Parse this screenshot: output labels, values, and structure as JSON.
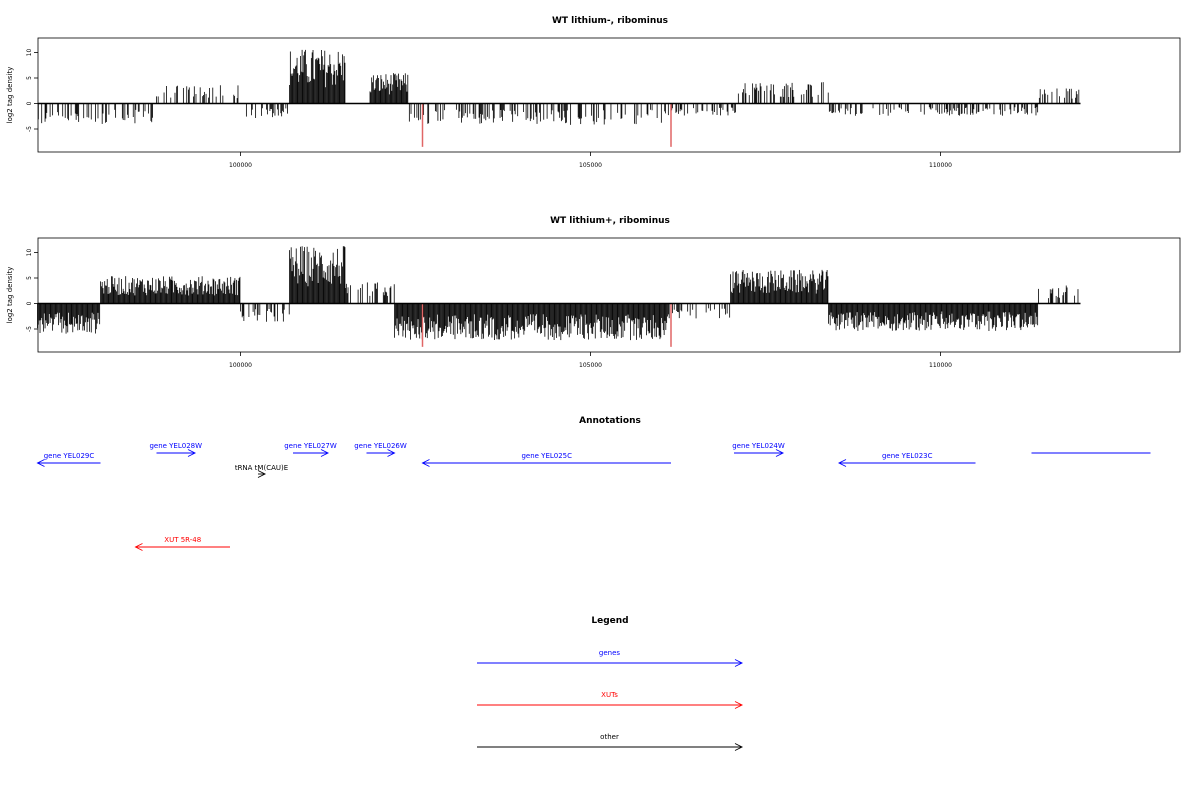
{
  "chart_data": [
    {
      "type": "bar",
      "title": "WT lithium-, ribominus",
      "ylabel": "log2 tag density",
      "xlabel": "",
      "xlim": [
        97000,
        112000
      ],
      "ylim": [
        -8.5,
        11.5
      ],
      "xticks": [
        100000,
        105000,
        110000
      ],
      "yticks": [
        -5,
        0,
        5,
        10
      ],
      "profile_segments": [
        {
          "start": 97100,
          "end": 98800,
          "level": -3.5
        },
        {
          "start": 98800,
          "end": 100000,
          "level": 3.0
        },
        {
          "start": 100000,
          "end": 100700,
          "level": -2.5
        },
        {
          "start": 100700,
          "end": 101500,
          "level": 9.0
        },
        {
          "start": 101500,
          "end": 101850,
          "level": 0
        },
        {
          "start": 101850,
          "end": 102400,
          "level": 5.0
        },
        {
          "start": 102400,
          "end": 106100,
          "level": -3.5
        },
        {
          "start": 106100,
          "end": 107100,
          "level": -2.0
        },
        {
          "start": 107100,
          "end": 108400,
          "level": 3.5
        },
        {
          "start": 108400,
          "end": 111400,
          "level": -2.0
        },
        {
          "start": 111400,
          "end": 112000,
          "level": 2.5
        }
      ],
      "highlights": [
        {
          "x": 102600,
          "y": -8.5,
          "color": "#e06666"
        },
        {
          "x": 106150,
          "y": -8.5,
          "color": "#e06666"
        }
      ]
    },
    {
      "type": "bar",
      "title": "WT lithium+, ribominus",
      "ylabel": "log2 tag density",
      "xlabel": "",
      "xlim": [
        97000,
        112000
      ],
      "ylim": [
        -8.5,
        11.5
      ],
      "xticks": [
        100000,
        105000,
        110000
      ],
      "yticks": [
        -5,
        0,
        5,
        10
      ],
      "profile_segments": [
        {
          "start": 97100,
          "end": 98000,
          "level": -5.0
        },
        {
          "start": 98000,
          "end": 100000,
          "level": 4.5
        },
        {
          "start": 100000,
          "end": 100700,
          "level": -3.0
        },
        {
          "start": 100700,
          "end": 101500,
          "level": 9.5
        },
        {
          "start": 101500,
          "end": 102200,
          "level": 3.5
        },
        {
          "start": 102200,
          "end": 106100,
          "level": -6.0
        },
        {
          "start": 106100,
          "end": 107000,
          "level": -2.5
        },
        {
          "start": 107000,
          "end": 108400,
          "level": 5.5
        },
        {
          "start": 108400,
          "end": 111400,
          "level": -4.5
        },
        {
          "start": 111400,
          "end": 112000,
          "level": 3.0
        }
      ],
      "highlights": [
        {
          "x": 102600,
          "y": -8.5,
          "color": "#e06666"
        },
        {
          "x": 106150,
          "y": -8.5,
          "color": "#e06666"
        }
      ]
    }
  ],
  "annotations": {
    "title": "Annotations",
    "items": [
      {
        "label": "gene YEL029C",
        "color": "#0000ff",
        "start": 97100,
        "end": 98000,
        "direction": "left"
      },
      {
        "label": "gene YEL028W",
        "color": "#0000ff",
        "start": 98800,
        "end": 99350,
        "direction": "right"
      },
      {
        "label": "gene YEL027W",
        "color": "#0000ff",
        "start": 100750,
        "end": 101250,
        "direction": "right"
      },
      {
        "label": "gene YEL026W",
        "color": "#0000ff",
        "start": 101800,
        "end": 102200,
        "direction": "right"
      },
      {
        "label": "gene YEL025C",
        "color": "#0000ff",
        "start": 102600,
        "end": 106150,
        "direction": "left"
      },
      {
        "label": "gene YEL024W",
        "color": "#0000ff",
        "start": 107050,
        "end": 107750,
        "direction": "right"
      },
      {
        "label": "gene YEL023C",
        "color": "#0000ff",
        "start": 108550,
        "end": 110500,
        "direction": "left"
      },
      {
        "label": "",
        "color": "#0000ff",
        "start": 111300,
        "end": 113000,
        "direction": "none"
      },
      {
        "label": "tRNA tM(CAU)E",
        "color": "#000000",
        "start": 100250,
        "end": 100350,
        "direction": "right"
      },
      {
        "label": "XUT 5R-48",
        "color": "#ff0000",
        "start": 98500,
        "end": 99850,
        "direction": "left"
      }
    ]
  },
  "legend": {
    "title": "Legend",
    "items": [
      {
        "label": "genes",
        "color": "#0000ff"
      },
      {
        "label": "XUTs",
        "color": "#ff0000"
      },
      {
        "label": "other",
        "color": "#000000"
      }
    ]
  }
}
